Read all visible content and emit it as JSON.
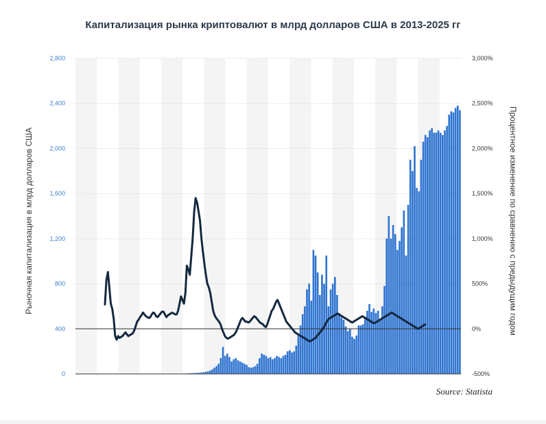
{
  "title": "Капитализация рынка криптовалют в млрд долларов США в 2013-2025 гг",
  "source": "Source: Statista",
  "colors": {
    "bar": "#2f74d0",
    "line": "#14283f",
    "left_tick": "#3f7fd0",
    "right_tick": "#333333",
    "band": "#f4f4f4"
  },
  "chart_data": {
    "type": "bar",
    "ylabel": "Рыночная капитализация в млрд долларов США",
    "y2label": "Процентное изменение по сравнению с предыдущим годом",
    "ylim": [
      0,
      2800
    ],
    "y2lim": [
      -500,
      3000
    ],
    "yticks": [
      "0",
      "400",
      "800",
      "1,200",
      "1,600",
      "2,000",
      "2,400",
      "2,800"
    ],
    "y2ticks": [
      "-500%",
      "0%",
      "500%",
      "1,000%",
      "1,500%",
      "2,000%",
      "2,500%",
      "3,000%"
    ],
    "grid": true,
    "series": [
      {
        "type": "bar",
        "axis": "left",
        "values": [
          2,
          3,
          2,
          0,
          0,
          0,
          0,
          0,
          0,
          0,
          0,
          0,
          0,
          0,
          0,
          0,
          0,
          0,
          0,
          0,
          0,
          0,
          0,
          0,
          0,
          0,
          0,
          0,
          0,
          0,
          0,
          0,
          0,
          0,
          0,
          0,
          0,
          0,
          0,
          0,
          0,
          0,
          0,
          0,
          0,
          0,
          0,
          1,
          2,
          2,
          3,
          4,
          5,
          6,
          7,
          8,
          9,
          10,
          12,
          15,
          18,
          22,
          30,
          40,
          55,
          70,
          90,
          140,
          240,
          160,
          180,
          150,
          110,
          130,
          140,
          120,
          110,
          100,
          90,
          80,
          60,
          55,
          60,
          70,
          90,
          140,
          180,
          170,
          160,
          140,
          150,
          130,
          140,
          160,
          150,
          140,
          160,
          170,
          200,
          210,
          190,
          200,
          250,
          350,
          430,
          530,
          600,
          750,
          800,
          650,
          1100,
          1050,
          900,
          700,
          880,
          800,
          1050,
          600,
          750,
          800,
          860,
          700,
          540,
          500,
          480,
          420,
          380,
          400,
          330,
          310,
          340,
          430,
          430,
          440,
          500,
          560,
          620,
          550,
          580,
          540,
          560,
          480,
          600,
          780,
          1200,
          1400,
          1200,
          1320,
          1240,
          1100,
          1180,
          1300,
          1450,
          1050,
          1500,
          1900,
          1800,
          2020,
          1650,
          1620,
          1900,
          2060,
          2120,
          2100,
          2160,
          2180,
          2140,
          2140,
          2160,
          2140,
          2120,
          2160,
          2200,
          2300,
          2330,
          2320,
          2360,
          2380,
          2340
        ]
      },
      {
        "type": "line",
        "axis": "right",
        "values": [
          270,
          540,
          630,
          460,
          280,
          220,
          110,
          -80,
          -120,
          -80,
          -100,
          -90,
          -80,
          -60,
          -40,
          -60,
          -80,
          -70,
          -60,
          -50,
          -20,
          30,
          80,
          100,
          130,
          150,
          180,
          160,
          140,
          130,
          120,
          130,
          160,
          180,
          170,
          140,
          130,
          150,
          170,
          190,
          190,
          160,
          130,
          150,
          160,
          170,
          180,
          170,
          160,
          160,
          200,
          280,
          360,
          320,
          280,
          400,
          700,
          660,
          600,
          800,
          1000,
          1300,
          1450,
          1400,
          1300,
          1200,
          1000,
          850,
          720,
          600,
          500,
          460,
          400,
          300,
          200,
          150,
          120,
          100,
          80,
          50,
          0,
          -40,
          -80,
          -100,
          -110,
          -100,
          -90,
          -80,
          -70,
          -50,
          -20,
          20,
          60,
          100,
          120,
          100,
          80,
          80,
          70,
          80,
          100,
          120,
          140,
          130,
          110,
          90,
          70,
          60,
          50,
          30,
          20,
          50,
          100,
          150,
          200,
          220,
          260,
          300,
          320,
          280,
          240,
          200,
          160,
          120,
          80,
          60,
          40,
          20,
          0,
          -20,
          -40,
          -50,
          -60,
          -70,
          -80,
          -90,
          -100,
          -110,
          -120,
          -130,
          -140,
          -130,
          -120,
          -110,
          -100,
          -80,
          -60,
          -40,
          -20,
          0,
          30,
          60,
          90,
          110,
          120,
          130,
          140,
          150,
          160,
          170,
          160,
          150,
          140,
          130,
          120,
          110,
          100,
          90,
          80,
          70,
          80,
          90,
          100,
          110,
          120,
          130,
          140,
          130,
          120,
          110,
          100,
          90,
          80,
          70,
          60,
          70,
          80,
          90,
          100,
          110,
          120,
          130,
          140,
          150,
          160,
          170,
          180,
          170,
          160,
          150,
          140,
          130,
          120,
          110,
          100,
          90,
          80,
          70,
          60,
          50,
          40,
          30,
          20,
          10,
          0,
          10,
          20,
          30,
          40,
          50
        ]
      }
    ]
  }
}
